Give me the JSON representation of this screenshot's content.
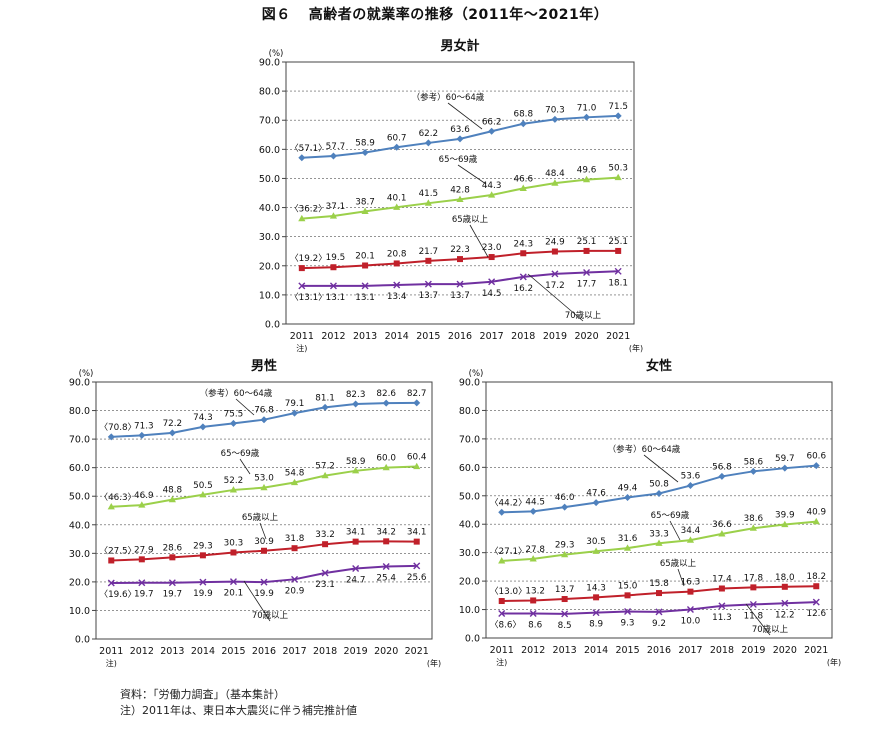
{
  "figure": {
    "number": "図６",
    "title": "高齢者の就業率の推移（2011年～2021年）"
  },
  "colors": {
    "age_60_64": "#4f81bd",
    "age_65_69": "#9bd04a",
    "age_65_plus": "#c0202a",
    "age_70_plus": "#7030a0",
    "grid": "#555555",
    "axis": "#444444"
  },
  "footer": {
    "source": "資料：「労働力調査」（基本集計）",
    "note": "注）2011年は、東日本大震災に伴う補完推計値"
  },
  "chart_data": [
    {
      "type": "line",
      "title": "男女計",
      "ylabel": "(%)",
      "xlabel": "(年)",
      "x_note": "注)",
      "ylim": [
        0,
        90
      ],
      "yticks": [
        "0.0",
        "10.0",
        "20.0",
        "30.0",
        "40.0",
        "50.0",
        "60.0",
        "70.0",
        "80.0",
        "90.0"
      ],
      "categories": [
        "2011",
        "2012",
        "2013",
        "2014",
        "2015",
        "2016",
        "2017",
        "2018",
        "2019",
        "2020",
        "2021"
      ],
      "grid": true,
      "series": [
        {
          "name": "（参考）60～64歳",
          "key": "age_60_64",
          "marker": "diamond",
          "values": [
            57.1,
            57.7,
            58.9,
            60.7,
            62.2,
            63.6,
            66.2,
            68.8,
            70.3,
            71.0,
            71.5
          ],
          "labels": [
            "〈57.1〉",
            "57.7",
            "58.9",
            "60.7",
            "62.2",
            "63.6",
            "66.2",
            "68.8",
            "70.3",
            "71.0",
            "71.5"
          ]
        },
        {
          "name": "65～69歳",
          "key": "age_65_69",
          "marker": "triangle",
          "values": [
            36.2,
            37.1,
            38.7,
            40.1,
            41.5,
            42.8,
            44.3,
            46.6,
            48.4,
            49.6,
            50.3
          ],
          "labels": [
            "〈36.2〉",
            "37.1",
            "38.7",
            "40.1",
            "41.5",
            "42.8",
            "44.3",
            "46.6",
            "48.4",
            "49.6",
            "50.3"
          ]
        },
        {
          "name": "65歳以上",
          "key": "age_65_plus",
          "marker": "square",
          "values": [
            19.2,
            19.5,
            20.1,
            20.8,
            21.7,
            22.3,
            23.0,
            24.3,
            24.9,
            25.1,
            25.1
          ],
          "labels": [
            "〈19.2〉",
            "19.5",
            "20.1",
            "20.8",
            "21.7",
            "22.3",
            "23.0",
            "24.3",
            "24.9",
            "25.1",
            "25.1"
          ]
        },
        {
          "name": "70歳以上",
          "key": "age_70_plus",
          "marker": "x",
          "values": [
            13.1,
            13.1,
            13.1,
            13.4,
            13.7,
            13.7,
            14.5,
            16.2,
            17.2,
            17.7,
            18.1
          ],
          "labels": [
            "〈13.1〉",
            "13.1",
            "13.1",
            "13.4",
            "13.7",
            "13.7",
            "14.5",
            "16.2",
            "17.2",
            "17.7",
            "18.1"
          ]
        }
      ]
    },
    {
      "type": "line",
      "title": "男性",
      "ylabel": "(%)",
      "xlabel": "(年)",
      "x_note": "注)",
      "ylim": [
        0,
        90
      ],
      "yticks": [
        "0.0",
        "10.0",
        "20.0",
        "30.0",
        "40.0",
        "50.0",
        "60.0",
        "70.0",
        "80.0",
        "90.0"
      ],
      "categories": [
        "2011",
        "2012",
        "2013",
        "2014",
        "2015",
        "2016",
        "2017",
        "2018",
        "2019",
        "2020",
        "2021"
      ],
      "grid": true,
      "series": [
        {
          "name": "（参考）60～64歳",
          "key": "age_60_64",
          "marker": "diamond",
          "values": [
            70.8,
            71.3,
            72.2,
            74.3,
            75.5,
            76.8,
            79.1,
            81.1,
            82.3,
            82.6,
            82.7
          ],
          "labels": [
            "〈70.8〉",
            "71.3",
            "72.2",
            "74.3",
            "75.5",
            "76.8",
            "79.1",
            "81.1",
            "82.3",
            "82.6",
            "82.7"
          ]
        },
        {
          "name": "65～69歳",
          "key": "age_65_69",
          "marker": "triangle",
          "values": [
            46.3,
            46.9,
            48.8,
            50.5,
            52.2,
            53.0,
            54.8,
            57.2,
            58.9,
            60.0,
            60.4
          ],
          "labels": [
            "〈46.3〉",
            "46.9",
            "48.8",
            "50.5",
            "52.2",
            "53.0",
            "54.8",
            "57.2",
            "58.9",
            "60.0",
            "60.4"
          ]
        },
        {
          "name": "65歳以上",
          "key": "age_65_plus",
          "marker": "square",
          "values": [
            27.5,
            27.9,
            28.6,
            29.3,
            30.3,
            30.9,
            31.8,
            33.2,
            34.1,
            34.2,
            34.1
          ],
          "labels": [
            "〈27.5〉",
            "27.9",
            "28.6",
            "29.3",
            "30.3",
            "30.9",
            "31.8",
            "33.2",
            "34.1",
            "34.2",
            "34.1"
          ]
        },
        {
          "name": "70歳以上",
          "key": "age_70_plus",
          "marker": "x",
          "values": [
            19.6,
            19.7,
            19.7,
            19.9,
            20.1,
            19.9,
            20.9,
            23.1,
            24.7,
            25.4,
            25.6
          ],
          "labels": [
            "〈19.6〉",
            "19.7",
            "19.7",
            "19.9",
            "20.1",
            "19.9",
            "20.9",
            "23.1",
            "24.7",
            "25.4",
            "25.6"
          ]
        }
      ]
    },
    {
      "type": "line",
      "title": "女性",
      "ylabel": "(%)",
      "xlabel": "(年)",
      "x_note": "注)",
      "ylim": [
        0,
        90
      ],
      "yticks": [
        "0.0",
        "10.0",
        "20.0",
        "30.0",
        "40.0",
        "50.0",
        "60.0",
        "70.0",
        "80.0",
        "90.0"
      ],
      "categories": [
        "2011",
        "2012",
        "2013",
        "2014",
        "2015",
        "2016",
        "2017",
        "2018",
        "2019",
        "2020",
        "2021"
      ],
      "grid": true,
      "series": [
        {
          "name": "（参考）60～64歳",
          "key": "age_60_64",
          "marker": "diamond",
          "values": [
            44.2,
            44.5,
            46.0,
            47.6,
            49.4,
            50.8,
            53.6,
            56.8,
            58.6,
            59.7,
            60.6
          ],
          "labels": [
            "〈44.2〉",
            "44.5",
            "46.0",
            "47.6",
            "49.4",
            "50.8",
            "53.6",
            "56.8",
            "58.6",
            "59.7",
            "60.6"
          ]
        },
        {
          "name": "65～69歳",
          "key": "age_65_69",
          "marker": "triangle",
          "values": [
            27.1,
            27.8,
            29.3,
            30.5,
            31.6,
            33.3,
            34.4,
            36.6,
            38.6,
            39.9,
            40.9
          ],
          "labels": [
            "〈27.1〉",
            "27.8",
            "29.3",
            "30.5",
            "31.6",
            "33.3",
            "34.4",
            "36.6",
            "38.6",
            "39.9",
            "40.9"
          ]
        },
        {
          "name": "65歳以上",
          "key": "age_65_plus",
          "marker": "square",
          "values": [
            13.0,
            13.2,
            13.7,
            14.3,
            15.0,
            15.8,
            16.3,
            17.4,
            17.8,
            18.0,
            18.2
          ],
          "labels": [
            "〈13.0〉",
            "13.2",
            "13.7",
            "14.3",
            "15.0",
            "15.8",
            "16.3",
            "17.4",
            "17.8",
            "18.0",
            "18.2"
          ]
        },
        {
          "name": "70歳以上",
          "key": "age_70_plus",
          "marker": "x",
          "values": [
            8.6,
            8.6,
            8.5,
            8.9,
            9.3,
            9.2,
            10.0,
            11.3,
            11.8,
            12.2,
            12.6
          ],
          "labels": [
            "〈8.6〉",
            "8.6",
            "8.5",
            "8.9",
            "9.3",
            "9.2",
            "10.0",
            "11.3",
            "11.8",
            "12.2",
            "12.6"
          ]
        }
      ]
    }
  ]
}
